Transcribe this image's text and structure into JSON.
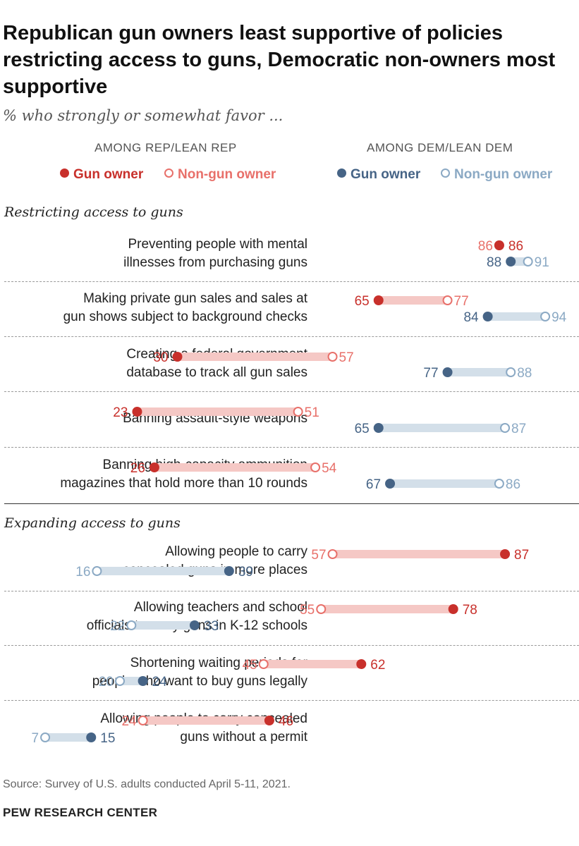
{
  "title": "Republican gun owners least supportive of policies restricting access to guns, Democratic non-owners most supportive",
  "subtitle": "% who strongly or somewhat favor ...",
  "group_headers": {
    "rep": "AMONG REP/LEAN REP",
    "dem": "AMONG DEM/LEAN DEM"
  },
  "legend": {
    "rep_owner": "Gun owner",
    "rep_nonowner": "Non-gun owner",
    "dem_owner": "Gun owner",
    "dem_nonowner": "Non-gun owner"
  },
  "colors": {
    "rep": "#c8302b",
    "rep_light": "#e8706a",
    "rep_band": "#f5c8c5",
    "dem": "#466486",
    "dem_light": "#8ba9c4",
    "dem_band": "#d3dfe9"
  },
  "sections": {
    "restricting": "Restricting access to guns",
    "expanding": "Expanding access to guns"
  },
  "rows": [
    {
      "label": [
        "Preventing people with mental",
        "illnesses from purchasing guns"
      ]
    },
    {
      "label": [
        "Making private gun sales and sales at",
        "gun shows subject to background checks"
      ]
    },
    {
      "label": [
        "Creating a federal government",
        "database to track all gun sales"
      ]
    },
    {
      "label": [
        "Banning assault-style weapons"
      ]
    },
    {
      "label": [
        "Banning high-capacity ammunition",
        "magazines that hold more than 10 rounds"
      ]
    },
    {
      "label": [
        "Allowing people to carry",
        "concealed guns in more places"
      ]
    },
    {
      "label": [
        "Allowing teachers and school",
        "officials to carry guns in K-12 schools"
      ]
    },
    {
      "label": [
        "Shortening waiting periods for",
        "people who want to buy guns legally"
      ]
    },
    {
      "label": [
        "Allowing people to carry concealed",
        "guns without a permit"
      ]
    }
  ],
  "chart_data": {
    "type": "dot",
    "x_range": [
      0,
      100
    ],
    "series": [
      {
        "name": "Rep/Lean Rep - Gun owner"
      },
      {
        "name": "Rep/Lean Rep - Non-gun owner"
      },
      {
        "name": "Dem/Lean Dem - Gun owner"
      },
      {
        "name": "Dem/Lean Dem - Non-gun owner"
      }
    ],
    "categories": [
      "Preventing people with mental illnesses from purchasing guns",
      "Making private gun sales and sales at gun shows subject to background checks",
      "Creating a federal government database to track all gun sales",
      "Banning assault-style weapons",
      "Banning high-capacity ammunition magazines that hold more than 10 rounds",
      "Allowing people to carry concealed guns in more places",
      "Allowing teachers and school officials to carry guns in K-12 schools",
      "Shortening waiting periods for people who want to buy guns legally",
      "Allowing people to carry concealed guns without a permit"
    ],
    "values": {
      "rep_owner": [
        86,
        65,
        30,
        23,
        26,
        87,
        78,
        62,
        46
      ],
      "rep_nonowner": [
        86,
        77,
        57,
        51,
        54,
        57,
        55,
        45,
        24
      ],
      "dem_owner": [
        88,
        84,
        77,
        65,
        67,
        39,
        33,
        24,
        15
      ],
      "dem_nonowner": [
        91,
        94,
        88,
        87,
        86,
        16,
        22,
        20,
        7
      ]
    }
  },
  "source": "Source: Survey of U.S. adults conducted April 5-11, 2021.",
  "credit": "PEW RESEARCH CENTER"
}
